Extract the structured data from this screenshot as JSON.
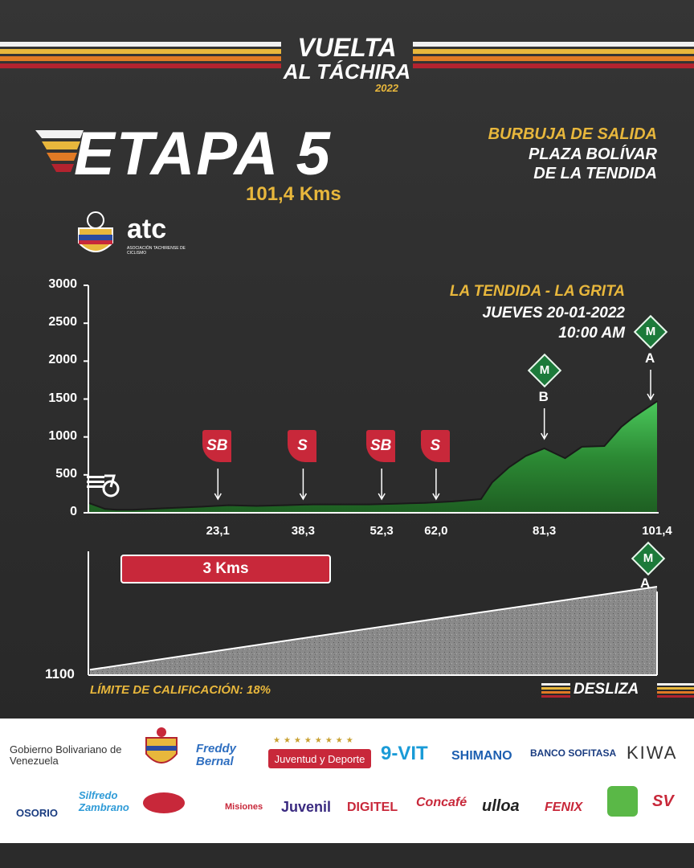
{
  "event": {
    "line1": "VUELTA",
    "line2": "AL TÁCHIRA",
    "year": "2022"
  },
  "stage": {
    "title": "ETAPA 5",
    "distance": "101,4 Kms"
  },
  "start": {
    "label": "BURBUJA DE SALIDA",
    "place_line1": "PLAZA BOLÍVAR",
    "place_line2": "DE LA TENDIDA"
  },
  "federation_logos": {
    "atc_text": "atc",
    "atc_caption": "ASOCIACIÓN TACHIRENSE DE CICLISMO"
  },
  "route": {
    "name": "LA TENDIDA - LA GRITA",
    "date": "JUEVES 20-01-2022",
    "time": "10:00 AM"
  },
  "markers": [
    {
      "label": "SB",
      "km": "23,1"
    },
    {
      "label": "S",
      "km": "38,3"
    },
    {
      "label": "SB",
      "km": "52,3"
    },
    {
      "label": "S",
      "km": "62,0"
    }
  ],
  "climbs": [
    {
      "badge": "M",
      "letter": "B",
      "km": "81,3"
    },
    {
      "badge": "M",
      "letter": "A",
      "km": "101,4"
    }
  ],
  "detail": {
    "length_label": "3 Kms",
    "base_alt": "1100",
    "badge": "M",
    "letter": "A"
  },
  "footer": {
    "limit": "LÍMITE DE CALIFICACIÓN: 18%",
    "swipe": "DESLIZA"
  },
  "sponsors": {
    "row1": [
      "Gobierno Bolivariano de Venezuela",
      "Freddy Bernal",
      "Juventud y Deporte",
      "9-VIT",
      "SHIMANO",
      "BANCO SOFITASA",
      "KIWA"
    ],
    "row2": [
      "OSORIO",
      "Silfredo Zambrano",
      "Misiones",
      "Juvenil",
      "DIGITEL",
      "Concafé",
      "ulloa",
      "FENIX",
      "SV"
    ]
  },
  "chart_data": [
    {
      "type": "area",
      "title": "",
      "xlabel": "",
      "ylabel": "",
      "ylim": [
        0,
        3000
      ],
      "yticks": [
        0,
        500,
        1000,
        1500,
        2000,
        2500,
        3000
      ],
      "xticks": [
        23.1,
        38.3,
        52.3,
        62.0,
        81.3,
        101.4
      ],
      "xlim": [
        0,
        101.4
      ],
      "x": [
        0,
        3,
        5,
        8,
        14,
        20,
        25,
        30,
        35,
        40,
        45,
        50,
        55,
        60,
        65,
        70,
        72,
        75,
        78,
        81.3,
        85,
        88,
        92,
        95,
        97,
        99,
        101.4
      ],
      "y": [
        130,
        50,
        40,
        40,
        60,
        80,
        100,
        90,
        100,
        110,
        110,
        110,
        120,
        130,
        150,
        180,
        400,
        600,
        750,
        850,
        720,
        870,
        880,
        1130,
        1250,
        1350,
        1470
      ],
      "grid": false
    },
    {
      "type": "area",
      "title": "",
      "xlabel": "",
      "ylabel": "",
      "xlim": [
        0,
        3
      ],
      "x": [
        0,
        1.1,
        3
      ],
      "y": [
        1100,
        1215,
        1410
      ],
      "grid": false
    }
  ],
  "colors": {
    "accent_red": "#c8283a",
    "gold": "#e8b73c",
    "green": "#1c7a3a",
    "stripe_orange": "#e07a25",
    "stripe_red": "#b3232f"
  }
}
